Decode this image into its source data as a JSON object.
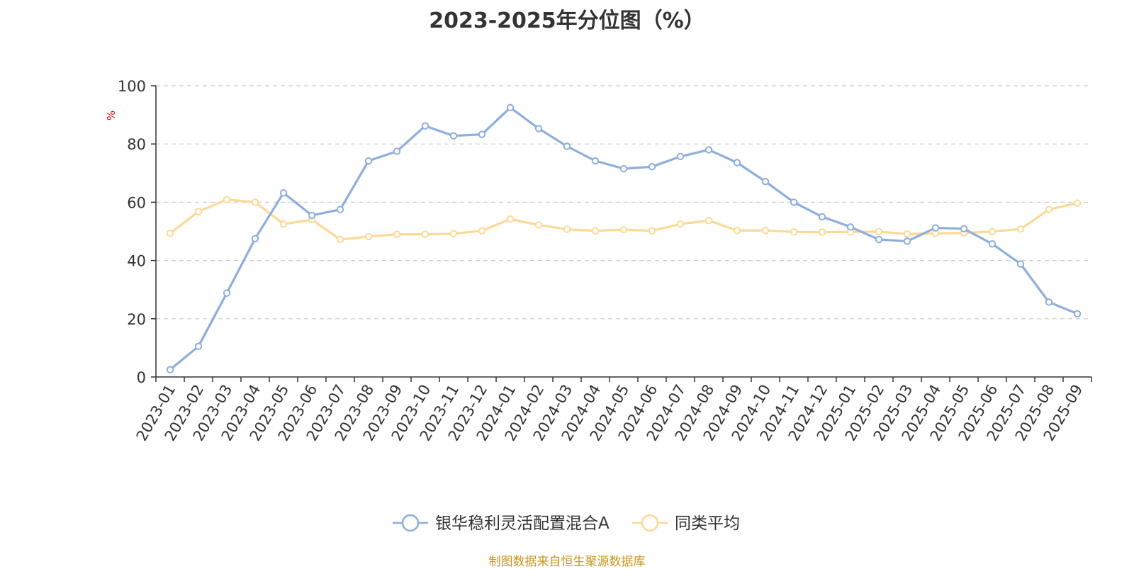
{
  "chart_data": {
    "type": "line",
    "title": "2023-2025年分位图（%）",
    "ylabel": "%",
    "ylim": [
      0,
      100
    ],
    "yticks": [
      0,
      20,
      40,
      60,
      80,
      100
    ],
    "grid": true,
    "legend_position": "bottom-center",
    "categories": [
      "2023-01",
      "2023-02",
      "2023-03",
      "2023-04",
      "2023-05",
      "2023-06",
      "2023-07",
      "2023-08",
      "2023-09",
      "2023-10",
      "2023-11",
      "2023-12",
      "2024-01",
      "2024-02",
      "2024-03",
      "2024-04",
      "2024-05",
      "2024-06",
      "2024-07",
      "2024-08",
      "2024-09",
      "2024-10",
      "2024-11",
      "2024-12",
      "2025-01",
      "2025-02",
      "2025-03",
      "2025-04",
      "2025-05",
      "2025-06",
      "2025-07",
      "2025-08",
      "2025-09"
    ],
    "series": [
      {
        "name": "银华稳利灵活配置混合A",
        "color": "#8eaedb",
        "values": [
          2.5,
          10.5,
          28.8,
          47.5,
          63.2,
          55.5,
          57.5,
          74.2,
          77.5,
          86.2,
          82.8,
          83.3,
          92.5,
          85.3,
          79.2,
          74.2,
          71.5,
          72.2,
          75.7,
          78.0,
          73.6,
          67.1,
          60.0,
          55.0,
          51.5,
          47.2,
          46.6,
          51.2,
          50.9,
          45.7,
          38.8,
          25.7,
          21.7
        ]
      },
      {
        "name": "同类平均",
        "color": "#fcd996",
        "values": [
          49.3,
          56.8,
          60.9,
          60.0,
          52.5,
          54.0,
          47.2,
          48.2,
          49.0,
          49.0,
          49.2,
          50.2,
          54.2,
          52.2,
          50.7,
          50.2,
          50.6,
          50.2,
          52.5,
          53.7,
          50.3,
          50.3,
          49.8,
          49.7,
          49.8,
          49.9,
          49.1,
          49.3,
          49.5,
          49.9,
          50.8,
          57.5,
          59.7
        ]
      }
    ]
  },
  "footer": {
    "source": "制图数据来自恒生聚源数据库"
  }
}
